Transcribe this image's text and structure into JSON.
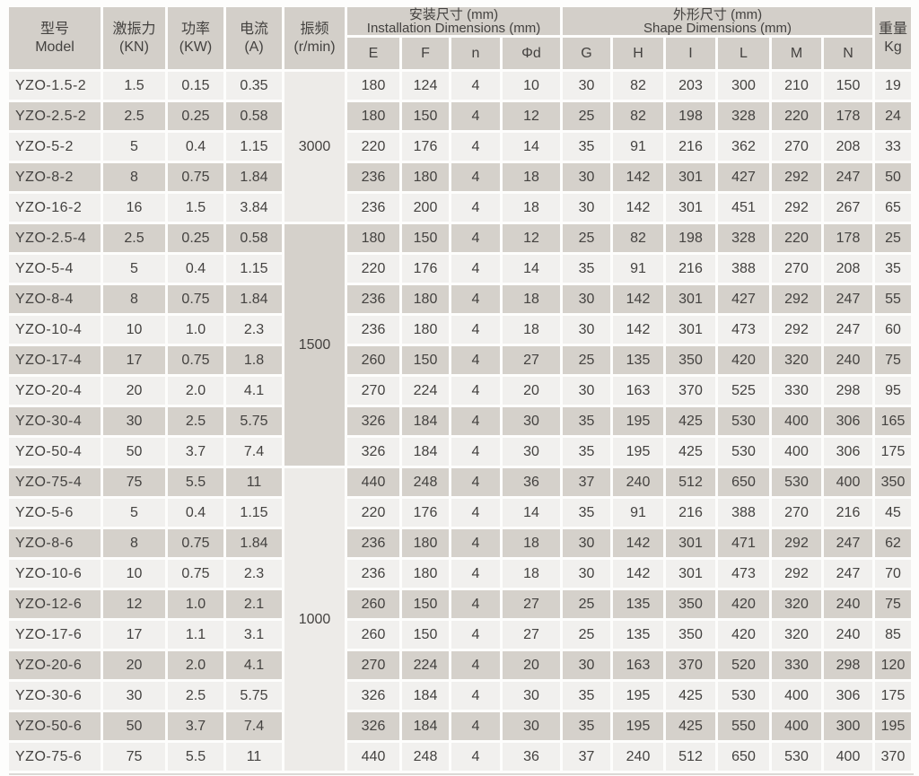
{
  "colors": {
    "header_bg": "#d3cfc9",
    "row_light": "#f1f0ee",
    "row_dark": "#d5d1cb",
    "freq_cell_light": "#edebe8",
    "freq_cell_dark": "#d5d1cb",
    "text": "#444240",
    "page_bg": "#fdfdfc"
  },
  "header": {
    "model": {
      "zh": "型号",
      "en": "Model"
    },
    "excitation_force": {
      "zh": "激振力",
      "unit": "(KN)"
    },
    "power": {
      "zh": "功率",
      "unit": "(KW)"
    },
    "current": {
      "zh": "电流",
      "unit": "(A)"
    },
    "frequency": {
      "zh": "振频",
      "unit": "(r/min)"
    },
    "installation_group": {
      "zh": "安装尺寸 (mm)",
      "en": "Installation Dimensions (mm)"
    },
    "shape_group": {
      "zh": "外形尺寸 (mm)",
      "en": "Shape Dimensions (mm)"
    },
    "weight": {
      "zh": "重量",
      "unit": "Kg"
    },
    "install_cols": [
      "E",
      "F",
      "n",
      "Φd"
    ],
    "shape_cols": [
      "G",
      "H",
      "I",
      "L",
      "M",
      "N"
    ]
  },
  "freq_groups": [
    {
      "rpm": "3000",
      "row_span": 5,
      "tone": "light"
    },
    {
      "rpm": "1500",
      "row_span": 8,
      "tone": "dark"
    },
    {
      "rpm": "1000",
      "row_span": 10,
      "tone": "light"
    }
  ],
  "column_keys": [
    "model",
    "excitation-kn",
    "power-kw",
    "current-a",
    "dim-e",
    "dim-f",
    "dim-n",
    "dim-phid",
    "dim-g",
    "dim-h",
    "dim-i",
    "dim-l",
    "dim-m",
    "dim-n-shape",
    "weight-kg"
  ],
  "rows": [
    [
      "YZO-1.5-2",
      "1.5",
      "0.15",
      "0.35",
      "180",
      "124",
      "4",
      "10",
      "30",
      "82",
      "203",
      "300",
      "210",
      "150",
      "19"
    ],
    [
      "YZO-2.5-2",
      "2.5",
      "0.25",
      "0.58",
      "180",
      "150",
      "4",
      "12",
      "25",
      "82",
      "198",
      "328",
      "220",
      "178",
      "24"
    ],
    [
      "YZO-5-2",
      "5",
      "0.4",
      "1.15",
      "220",
      "176",
      "4",
      "14",
      "35",
      "91",
      "216",
      "362",
      "270",
      "208",
      "33"
    ],
    [
      "YZO-8-2",
      "8",
      "0.75",
      "1.84",
      "236",
      "180",
      "4",
      "18",
      "30",
      "142",
      "301",
      "427",
      "292",
      "247",
      "50"
    ],
    [
      "YZO-16-2",
      "16",
      "1.5",
      "3.84",
      "236",
      "200",
      "4",
      "18",
      "30",
      "142",
      "301",
      "451",
      "292",
      "267",
      "65"
    ],
    [
      "YZO-2.5-4",
      "2.5",
      "0.25",
      "0.58",
      "180",
      "150",
      "4",
      "12",
      "25",
      "82",
      "198",
      "328",
      "220",
      "178",
      "25"
    ],
    [
      "YZO-5-4",
      "5",
      "0.4",
      "1.15",
      "220",
      "176",
      "4",
      "14",
      "35",
      "91",
      "216",
      "388",
      "270",
      "208",
      "35"
    ],
    [
      "YZO-8-4",
      "8",
      "0.75",
      "1.84",
      "236",
      "180",
      "4",
      "18",
      "30",
      "142",
      "301",
      "427",
      "292",
      "247",
      "55"
    ],
    [
      "YZO-10-4",
      "10",
      "1.0",
      "2.3",
      "236",
      "180",
      "4",
      "18",
      "30",
      "142",
      "301",
      "473",
      "292",
      "247",
      "60"
    ],
    [
      "YZO-17-4",
      "17",
      "0.75",
      "1.8",
      "260",
      "150",
      "4",
      "27",
      "25",
      "135",
      "350",
      "420",
      "320",
      "240",
      "75"
    ],
    [
      "YZO-20-4",
      "20",
      "2.0",
      "4.1",
      "270",
      "224",
      "4",
      "20",
      "30",
      "163",
      "370",
      "525",
      "330",
      "298",
      "95"
    ],
    [
      "YZO-30-4",
      "30",
      "2.5",
      "5.75",
      "326",
      "184",
      "4",
      "30",
      "35",
      "195",
      "425",
      "530",
      "400",
      "306",
      "165"
    ],
    [
      "YZO-50-4",
      "50",
      "3.7",
      "7.4",
      "326",
      "184",
      "4",
      "30",
      "35",
      "195",
      "425",
      "530",
      "400",
      "306",
      "175"
    ],
    [
      "YZO-75-4",
      "75",
      "5.5",
      "11",
      "440",
      "248",
      "4",
      "36",
      "37",
      "240",
      "512",
      "650",
      "530",
      "400",
      "350"
    ],
    [
      "YZO-5-6",
      "5",
      "0.4",
      "1.15",
      "220",
      "176",
      "4",
      "14",
      "35",
      "91",
      "216",
      "388",
      "270",
      "216",
      "45"
    ],
    [
      "YZO-8-6",
      "8",
      "0.75",
      "1.84",
      "236",
      "180",
      "4",
      "18",
      "30",
      "142",
      "301",
      "471",
      "292",
      "247",
      "62"
    ],
    [
      "YZO-10-6",
      "10",
      "0.75",
      "2.3",
      "236",
      "180",
      "4",
      "18",
      "30",
      "142",
      "301",
      "473",
      "292",
      "247",
      "70"
    ],
    [
      "YZO-12-6",
      "12",
      "1.0",
      "2.1",
      "260",
      "150",
      "4",
      "27",
      "25",
      "135",
      "350",
      "420",
      "320",
      "240",
      "75"
    ],
    [
      "YZO-17-6",
      "17",
      "1.1",
      "3.1",
      "260",
      "150",
      "4",
      "27",
      "25",
      "135",
      "350",
      "420",
      "320",
      "240",
      "85"
    ],
    [
      "YZO-20-6",
      "20",
      "2.0",
      "4.1",
      "270",
      "224",
      "4",
      "20",
      "30",
      "163",
      "370",
      "520",
      "330",
      "298",
      "120"
    ],
    [
      "YZO-30-6",
      "30",
      "2.5",
      "5.75",
      "326",
      "184",
      "4",
      "30",
      "35",
      "195",
      "425",
      "530",
      "400",
      "306",
      "175"
    ],
    [
      "YZO-50-6",
      "50",
      "3.7",
      "7.4",
      "326",
      "184",
      "4",
      "30",
      "35",
      "195",
      "425",
      "550",
      "400",
      "300",
      "195"
    ],
    [
      "YZO-75-6",
      "75",
      "5.5",
      "11",
      "440",
      "248",
      "4",
      "36",
      "37",
      "240",
      "512",
      "650",
      "530",
      "400",
      "370"
    ]
  ]
}
